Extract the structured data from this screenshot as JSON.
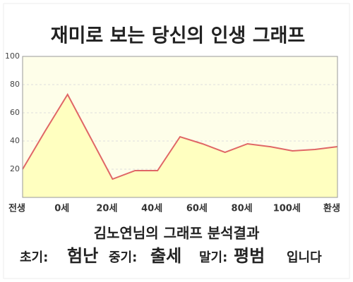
{
  "chart_data": {
    "type": "line",
    "title": "재미로 보는 당신의 인생 그래프",
    "categories": [
      "전생",
      null,
      "0세",
      null,
      "20세",
      null,
      "40세",
      null,
      "60세",
      null,
      "80세",
      null,
      "100세",
      null,
      "환생"
    ],
    "values": [
      20,
      47,
      73,
      43,
      13,
      19,
      19,
      43,
      38,
      32,
      38,
      36,
      33,
      34,
      36
    ],
    "color": "#e06666",
    "fill": "#ffffc0",
    "ylim": [
      0,
      100
    ],
    "yticks": [
      20,
      40,
      60,
      80,
      100
    ],
    "grid": true
  },
  "result": {
    "heading": "김노연님의 그래프 분석결과",
    "parts": [
      {
        "label": "초기:",
        "verdict": "험난"
      },
      {
        "label": "중기:",
        "verdict": "출세"
      },
      {
        "label": "말기:",
        "verdict": "평범"
      }
    ],
    "ending": "입니다"
  }
}
